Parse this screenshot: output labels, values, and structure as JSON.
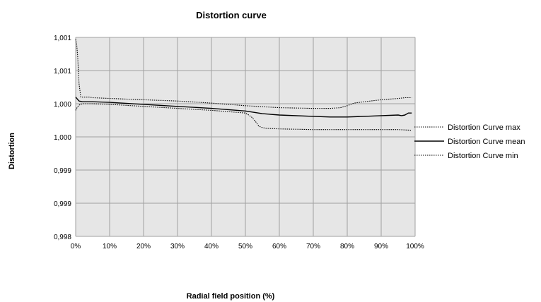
{
  "chart_data": {
    "type": "line",
    "title": "Distortion curve",
    "xlabel": "Radial field position (%)",
    "ylabel": "Distortion",
    "x_tick_labels": [
      "0%",
      "10%",
      "20%",
      "30%",
      "40%",
      "50%",
      "60%",
      "70%",
      "80%",
      "90%",
      "100%"
    ],
    "y_tick_labels": [
      "1,001",
      "1,001",
      "1,000",
      "1,000",
      "0,999",
      "0,999",
      "0,998"
    ],
    "xlim": [
      0,
      100
    ],
    "ylim": [
      0.998,
      1.001
    ],
    "grid": true,
    "legend_position": "right",
    "plot_background": "#e6e6e6",
    "line_color": "#000000",
    "series": [
      {
        "name": "Distortion Curve max",
        "style": "dotted",
        "x": [
          0,
          0.3,
          0.6,
          1,
          1.5,
          2,
          2.5,
          3,
          4,
          5,
          10,
          20,
          30,
          40,
          50,
          60,
          70,
          75,
          78,
          80,
          82,
          85,
          90,
          95,
          97,
          99
        ],
        "y": [
          1.00097,
          1.0009,
          1.0007,
          1.0003,
          1.0001,
          1.0001,
          1.0001,
          1.0001,
          1.0001,
          1.00009,
          1.00008,
          1.00006,
          1.00004,
          1.00001,
          0.99997,
          0.99994,
          0.99993,
          0.99993,
          0.99994,
          0.99997,
          1.00001,
          1.00003,
          1.00006,
          1.00008,
          1.00009,
          1.00009
        ]
      },
      {
        "name": "Distortion Curve mean",
        "style": "solid",
        "x": [
          0,
          0.5,
          1,
          2,
          5,
          10,
          20,
          30,
          40,
          50,
          55,
          60,
          70,
          75,
          80,
          85,
          90,
          95,
          96,
          97,
          98,
          99
        ],
        "y": [
          1.0001,
          1.00007,
          1.00004,
          1.00003,
          1.00003,
          1.00002,
          0.99999,
          0.99996,
          0.99993,
          0.99989,
          0.99985,
          0.99983,
          0.99981,
          0.9998,
          0.9998,
          0.99981,
          0.99982,
          0.99983,
          0.99982,
          0.99983,
          0.99986,
          0.99986
        ]
      },
      {
        "name": "Distortion Curve min",
        "style": "dotted",
        "x": [
          0,
          0.5,
          1,
          2,
          3,
          5,
          10,
          20,
          30,
          40,
          50,
          51,
          52,
          53,
          54,
          55,
          56,
          60,
          70,
          80,
          85,
          90,
          95,
          99
        ],
        "y": [
          0.9999,
          0.99995,
          0.99998,
          1.0,
          1.0,
          1.0,
          0.99999,
          0.99996,
          0.99993,
          0.9999,
          0.99986,
          0.99983,
          0.99979,
          0.99973,
          0.99966,
          0.99964,
          0.99963,
          0.99962,
          0.99961,
          0.99961,
          0.99961,
          0.99961,
          0.99961,
          0.9996
        ]
      }
    ]
  }
}
